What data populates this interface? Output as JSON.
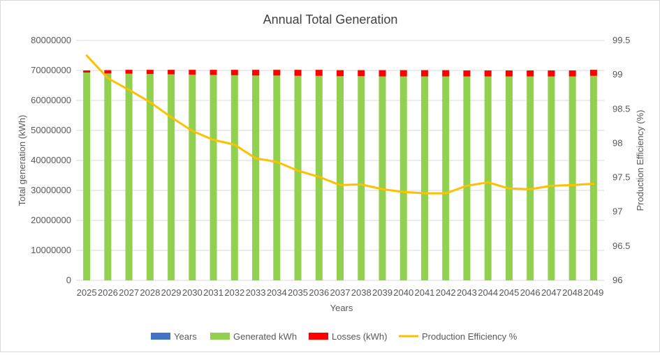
{
  "chart_data": {
    "type": "bar",
    "title": "Annual Total Generation",
    "xlabel": "Years",
    "ylabel": "Total generation (kWh)",
    "y2label": "Production Efficiency (%)",
    "ylim": [
      0,
      80000000
    ],
    "y2lim": [
      96,
      99.5
    ],
    "yticks": [
      "0",
      "10000000",
      "20000000",
      "30000000",
      "40000000",
      "50000000",
      "60000000",
      "70000000",
      "80000000"
    ],
    "y2ticks": [
      "96",
      "96.5",
      "97",
      "97.5",
      "98",
      "98.5",
      "99",
      "99.5"
    ],
    "categories": [
      "2025",
      "2026",
      "2027",
      "2028",
      "2029",
      "2030",
      "2031",
      "2032",
      "2033",
      "2034",
      "2035",
      "2036",
      "2037",
      "2038",
      "2039",
      "2040",
      "2041",
      "2042",
      "2043",
      "2044",
      "2045",
      "2046",
      "2047",
      "2048",
      "2049"
    ],
    "stacked": true,
    "series": [
      {
        "name": "Years",
        "kind": "bar",
        "color": "#4472c4",
        "values": [
          2025,
          2026,
          2027,
          2028,
          2029,
          2030,
          2031,
          2032,
          2033,
          2034,
          2035,
          2036,
          2037,
          2038,
          2039,
          2040,
          2041,
          2042,
          2043,
          2044,
          2045,
          2046,
          2047,
          2048,
          2049
        ]
      },
      {
        "name": "Generated kWh",
        "kind": "bar",
        "color": "#92d050",
        "values": [
          69300000,
          69000000,
          68900000,
          68800000,
          68700000,
          68600000,
          68500000,
          68400000,
          68300000,
          68300000,
          68200000,
          68200000,
          68100000,
          68100000,
          68000000,
          68000000,
          68000000,
          68000000,
          68000000,
          68000000,
          68000000,
          68000000,
          68000000,
          68000000,
          68200000
        ]
      },
      {
        "name": "Losses (kWh)",
        "kind": "bar",
        "color": "#ff0000",
        "values": [
          700000,
          1100000,
          1300000,
          1400000,
          1500000,
          1600000,
          1700000,
          1800000,
          1900000,
          1900000,
          2000000,
          2000000,
          2000000,
          2000000,
          2100000,
          2100000,
          2100000,
          2100000,
          2000000,
          2000000,
          2000000,
          2000000,
          2000000,
          2000000,
          2000000
        ]
      },
      {
        "name": "Production Efficiency %",
        "kind": "line",
        "axis": "right",
        "color": "#ffc000",
        "values": [
          99.28,
          98.95,
          98.78,
          98.6,
          98.38,
          98.18,
          98.05,
          97.98,
          97.78,
          97.73,
          97.6,
          97.51,
          97.39,
          97.4,
          97.33,
          97.29,
          97.27,
          97.27,
          97.38,
          97.43,
          97.34,
          97.33,
          97.38,
          97.39,
          97.41
        ]
      }
    ],
    "legend_position": "bottom",
    "grid": true
  }
}
